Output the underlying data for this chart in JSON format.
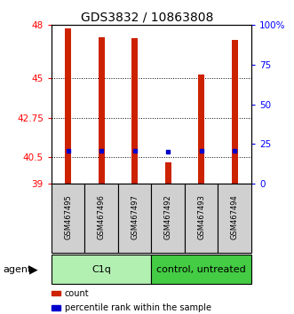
{
  "title": "GDS3832 / 10863808",
  "samples": [
    "GSM467495",
    "GSM467496",
    "GSM467497",
    "GSM467492",
    "GSM467493",
    "GSM467494"
  ],
  "bar_values": [
    47.8,
    47.3,
    47.25,
    40.2,
    45.2,
    47.15
  ],
  "bar_bottom": 39.0,
  "blue_marker_values": [
    40.85,
    40.85,
    40.85,
    40.82,
    40.85,
    40.85
  ],
  "bar_color": "#cc2200",
  "blue_color": "#0000cc",
  "ylim_left": [
    39,
    48
  ],
  "yticks_left": [
    39,
    40.5,
    42.75,
    45,
    48
  ],
  "ytick_labels_left": [
    "39",
    "40.5",
    "42.75",
    "45",
    "48"
  ],
  "yticks_right_pct": [
    0,
    25,
    50,
    75,
    100
  ],
  "ytick_labels_right": [
    "0",
    "25",
    "50",
    "75",
    "100%"
  ],
  "groups": [
    {
      "label": "C1q",
      "start": 0,
      "end": 3,
      "color": "#b2f0b2"
    },
    {
      "label": "control, untreated",
      "start": 3,
      "end": 6,
      "color": "#44cc44"
    }
  ],
  "agent_label": "agent",
  "legend_items": [
    {
      "label": "count",
      "color": "#cc2200"
    },
    {
      "label": "percentile rank within the sample",
      "color": "#0000cc"
    }
  ],
  "bar_width": 0.18,
  "title_fontsize": 10,
  "tick_fontsize": 7.5,
  "sample_fontsize": 6.0,
  "group_fontsize": 8.0,
  "legend_fontsize": 7.0
}
